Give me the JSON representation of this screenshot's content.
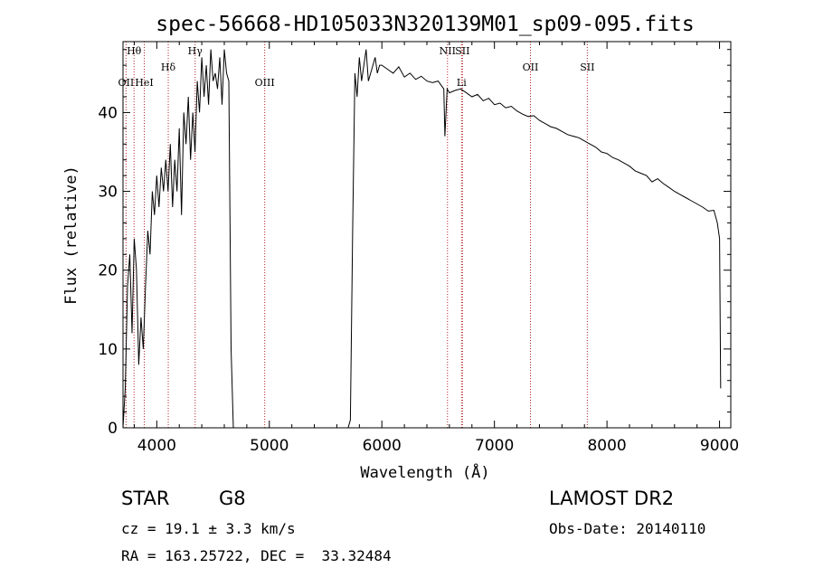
{
  "colors": {
    "line": "#000000",
    "marker": "#b22222",
    "background": "#ffffff"
  },
  "chart_data": {
    "type": "line",
    "title": "spec-56668-HD105033N320139M01_sp09-095.fits",
    "xlabel": "Wavelength (Å)",
    "ylabel": "Flux (relative)",
    "xlim": [
      3700,
      9100
    ],
    "ylim": [
      0,
      49
    ],
    "xticks": [
      4000,
      5000,
      6000,
      7000,
      8000,
      9000
    ],
    "yticks": [
      0,
      10,
      20,
      30,
      40
    ],
    "grid": false,
    "line_markers": [
      {
        "label": "Hθ",
        "x": 3798,
        "row": 0
      },
      {
        "label": "OII",
        "x": 3727,
        "row": 2
      },
      {
        "label": "HeI",
        "x": 3889,
        "row": 2
      },
      {
        "label": "Hδ",
        "x": 4102,
        "row": 1
      },
      {
        "label": "Hγ",
        "x": 4341,
        "row": 0
      },
      {
        "label": "OIII",
        "x": 4959,
        "row": 2
      },
      {
        "label": "NII",
        "x": 6583,
        "row": 0
      },
      {
        "label": "SII",
        "x": 6716,
        "row": 0
      },
      {
        "label": "Li",
        "x": 6708,
        "row": 2
      },
      {
        "label": "OII",
        "x": 7320,
        "row": 1
      },
      {
        "label": "SII",
        "x": 7825,
        "row": 1
      }
    ],
    "series": [
      {
        "x": [
          3700,
          3720,
          3740,
          3760,
          3780,
          3800,
          3820,
          3840,
          3860,
          3880,
          3900,
          3920,
          3940,
          3960,
          3980,
          4000,
          4020,
          4040,
          4060,
          4080,
          4100,
          4120,
          4140,
          4160,
          4180,
          4200,
          4220,
          4240,
          4260,
          4280,
          4300,
          4320,
          4340,
          4360,
          4380,
          4400,
          4420,
          4440,
          4460,
          4480,
          4500,
          4520,
          4540,
          4560,
          4580,
          4600,
          4620,
          4640,
          4660,
          4680,
          5700,
          5720,
          5740,
          5760,
          5780,
          5800,
          5820,
          5840,
          5860,
          5880,
          5900,
          5920,
          5940,
          5960,
          5980,
          6000,
          6050,
          6100,
          6150,
          6200,
          6250,
          6300,
          6350,
          6400,
          6450,
          6500,
          6550,
          6560,
          6580,
          6600,
          6650,
          6700,
          6750,
          6800,
          6850,
          6900,
          6950,
          7000,
          7050,
          7100,
          7150,
          7200,
          7250,
          7300,
          7350,
          7400,
          7450,
          7500,
          7550,
          7600,
          7650,
          7700,
          7750,
          7800,
          7850,
          7900,
          7950,
          8000,
          8050,
          8100,
          8150,
          8200,
          8250,
          8300,
          8350,
          8400,
          8450,
          8500,
          8550,
          8600,
          8650,
          8700,
          8750,
          8800,
          8850,
          8900,
          8950,
          8980,
          9000,
          9010
        ],
        "y": [
          0,
          5,
          18,
          22,
          12,
          24,
          20,
          8,
          14,
          10,
          18,
          25,
          22,
          30,
          27,
          32,
          28,
          33,
          30,
          34,
          30,
          36,
          28,
          34,
          30,
          38,
          27,
          40,
          36,
          42,
          34,
          40,
          35,
          44,
          40,
          47,
          42,
          46,
          41,
          48,
          44,
          45,
          43,
          47,
          41,
          48,
          45,
          44,
          10,
          0,
          0,
          1,
          25,
          45,
          42,
          47,
          44,
          46,
          48,
          44,
          45,
          46,
          47,
          45,
          46,
          46,
          45.5,
          45,
          45.8,
          44.5,
          45,
          44.2,
          44.6,
          44,
          43.8,
          44,
          43,
          37,
          43,
          42.5,
          42.8,
          43,
          42.5,
          42,
          42.3,
          41.5,
          41.8,
          41,
          41.2,
          40.6,
          40.8,
          40.2,
          39.8,
          39.5,
          39.6,
          39,
          38.6,
          38.2,
          38,
          37.6,
          37.2,
          37,
          36.8,
          36.4,
          36,
          35.6,
          35,
          34.8,
          34.3,
          34,
          33.6,
          33.2,
          32.6,
          32.3,
          32,
          31.2,
          31.6,
          31,
          30.5,
          30,
          29.6,
          29.2,
          28.8,
          28.4,
          28,
          27.5,
          27.6,
          26,
          24,
          5
        ]
      }
    ]
  },
  "info": {
    "object_class": "STAR",
    "subclass": "G8",
    "survey": "LAMOST DR2",
    "redshift": "cz = 19.1 ± 3.3 km/s",
    "obs_date": "Obs-Date: 20140110",
    "coords": "RA = 163.25722, DEC =  33.32484"
  }
}
